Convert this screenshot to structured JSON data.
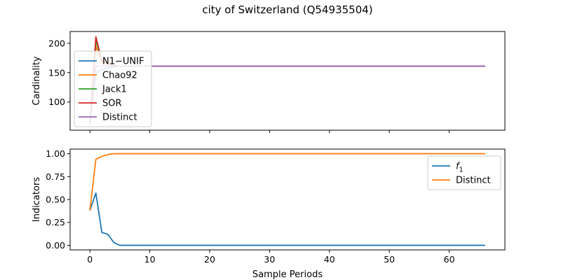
{
  "figure": {
    "title": "city of Switzerland (Q54935504)"
  },
  "chart_data": [
    {
      "type": "line",
      "ylabel": "Cardinality",
      "xlabel": "",
      "xlim": [
        -3.3,
        69.3
      ],
      "ylim": [
        52,
        220
      ],
      "xticks": [
        0,
        10,
        20,
        30,
        40,
        50,
        60
      ],
      "yticks": [
        100,
        150,
        200
      ],
      "ytick_labels": [
        "100",
        "150",
        "200"
      ],
      "show_x_tick_labels": false,
      "legend_position": "upper-left",
      "series": [
        {
          "name": "N1−UNIF",
          "color": "#1f77b4",
          "points": [
            [
              0,
              62
            ],
            [
              1,
              150
            ],
            [
              2,
              155
            ],
            [
              3,
              158
            ],
            [
              4,
              160
            ],
            [
              5,
              161
            ],
            [
              66,
              161
            ]
          ]
        },
        {
          "name": "Chao92",
          "color": "#ff7f0e",
          "points": [
            [
              0,
              62
            ],
            [
              1,
              195
            ],
            [
              2,
              167
            ],
            [
              3,
              165
            ],
            [
              4,
              162
            ],
            [
              5,
              161
            ],
            [
              66,
              161
            ]
          ]
        },
        {
          "name": "Jack1",
          "color": "#2ca02c",
          "points": [
            [
              0,
              62
            ],
            [
              1,
              205
            ],
            [
              2,
              170
            ],
            [
              3,
              166
            ],
            [
              4,
              162
            ],
            [
              5,
              161
            ],
            [
              66,
              161
            ]
          ]
        },
        {
          "name": "SOR",
          "color": "#d62728",
          "points": [
            [
              0,
              62
            ],
            [
              1,
              211
            ],
            [
              2,
              170
            ],
            [
              3,
              167
            ],
            [
              4,
              162
            ],
            [
              5,
              161
            ],
            [
              66,
              161
            ]
          ]
        },
        {
          "name": "Distinct",
          "color": "#9467bd",
          "points": [
            [
              0,
              62
            ],
            [
              1,
              161
            ],
            [
              2,
              161
            ],
            [
              66,
              161
            ]
          ]
        }
      ]
    },
    {
      "type": "line",
      "ylabel": "Indicators",
      "xlabel": "Sample Periods",
      "xlim": [
        -3.3,
        69.3
      ],
      "ylim": [
        -0.05,
        1.05
      ],
      "xticks": [
        0,
        10,
        20,
        30,
        40,
        50,
        60
      ],
      "xtick_labels": [
        "0",
        "10",
        "20",
        "30",
        "40",
        "50",
        "60"
      ],
      "yticks": [
        0,
        0.25,
        0.5,
        0.75,
        1.0
      ],
      "ytick_labels": [
        "0.00",
        "0.25",
        "0.50",
        "0.75",
        "1.00"
      ],
      "show_x_tick_labels": true,
      "legend_position": "upper-right",
      "series": [
        {
          "name": "f1",
          "legend_main": "f",
          "legend_sub": "1",
          "color": "#1f77b4",
          "points": [
            [
              0,
              0.38
            ],
            [
              1,
              0.57
            ],
            [
              2,
              0.14
            ],
            [
              3,
              0.12
            ],
            [
              4,
              0.03
            ],
            [
              5,
              0.0
            ],
            [
              66,
              0.0
            ]
          ]
        },
        {
          "name": "Distinct",
          "color": "#ff7f0e",
          "points": [
            [
              0,
              0.38
            ],
            [
              1,
              0.94
            ],
            [
              2,
              0.97
            ],
            [
              3,
              0.99
            ],
            [
              4,
              1.0
            ],
            [
              66,
              1.0
            ]
          ]
        }
      ]
    }
  ]
}
